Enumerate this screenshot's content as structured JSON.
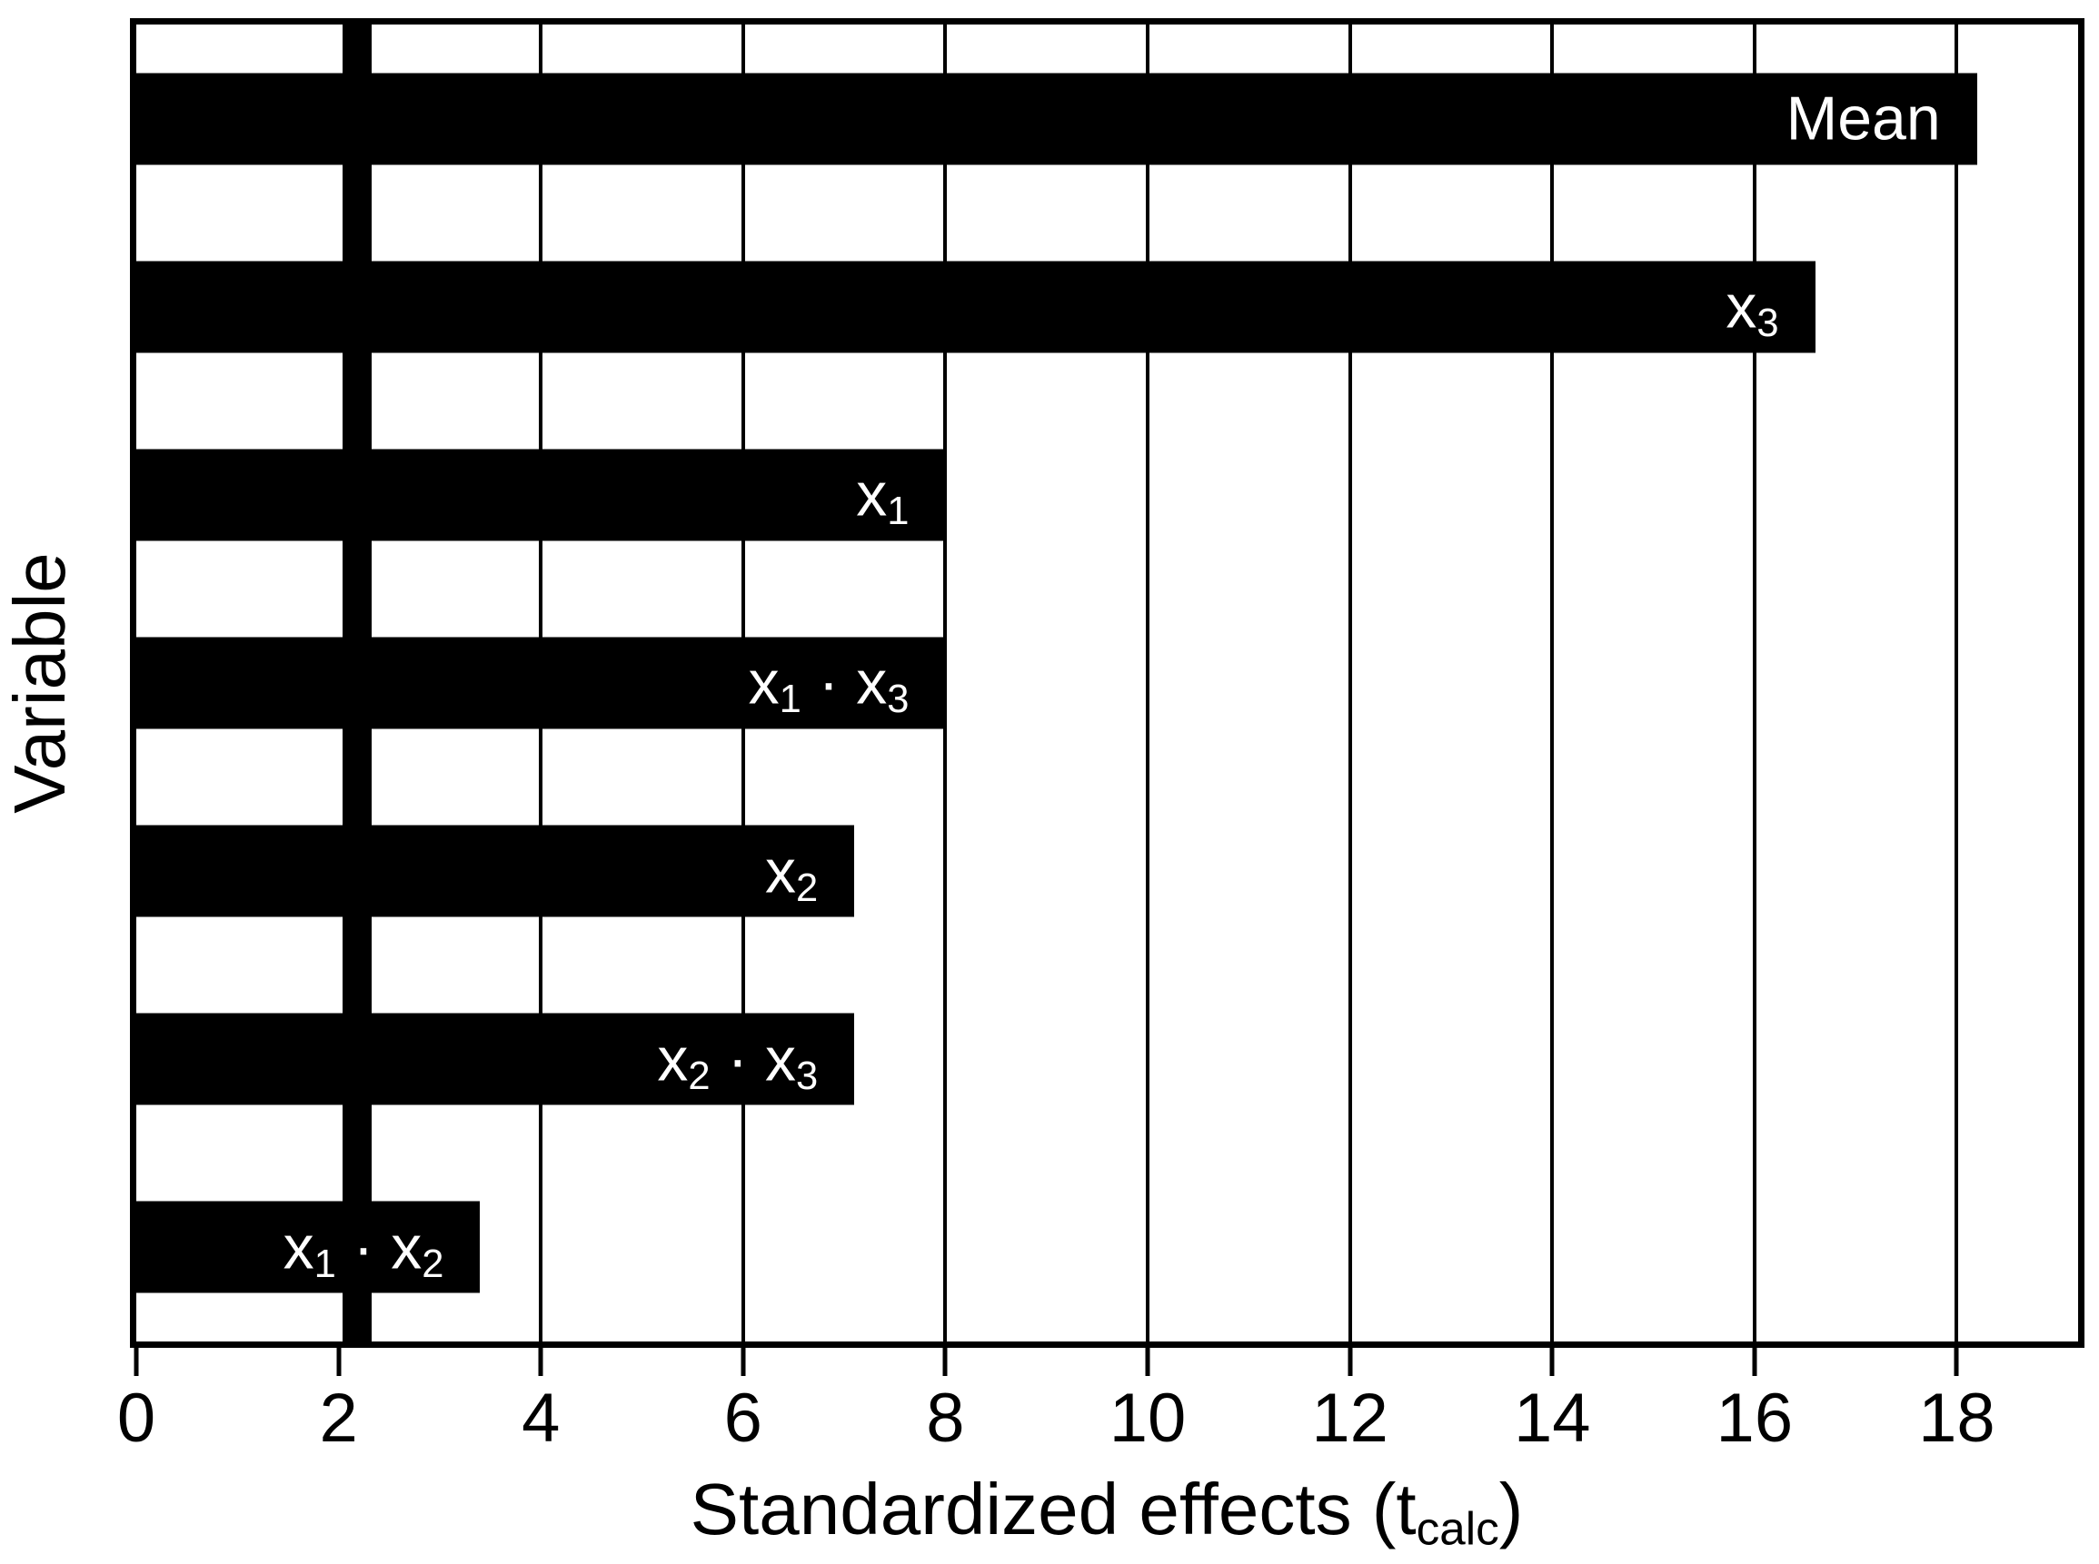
{
  "chart_data": {
    "type": "bar",
    "orientation": "horizontal",
    "title": "",
    "xlabel": "Standardized effects (t_calc)",
    "ylabel": "Variable",
    "categories": [
      "Mean",
      "x_3",
      "x_1",
      "x_1 · x_3",
      "x_2",
      "x_2 · x_3",
      "x_1 · x_2"
    ],
    "values": [
      18.2,
      16.6,
      8.0,
      8.0,
      7.1,
      7.1,
      3.4
    ],
    "bar_label_position": "inside-end",
    "xlim": [
      0,
      19.2
    ],
    "xticks": [
      0,
      2,
      4,
      6,
      8,
      10,
      12,
      14,
      16,
      18
    ],
    "gridlines": [
      4,
      6,
      8,
      10,
      12,
      14,
      16,
      18
    ],
    "grid": true,
    "legend": false,
    "reference_line": {
      "value": 2.18,
      "meaning": "significance threshold (critical t value)",
      "style": "thick-dashed-behind-bars"
    },
    "colors": {
      "bar": "#000000",
      "bar_label_text": "#ffffff",
      "grid": "#000000",
      "reference_line": "#000000",
      "axis": "#000000",
      "background": "#ffffff",
      "text": "#000000"
    }
  }
}
